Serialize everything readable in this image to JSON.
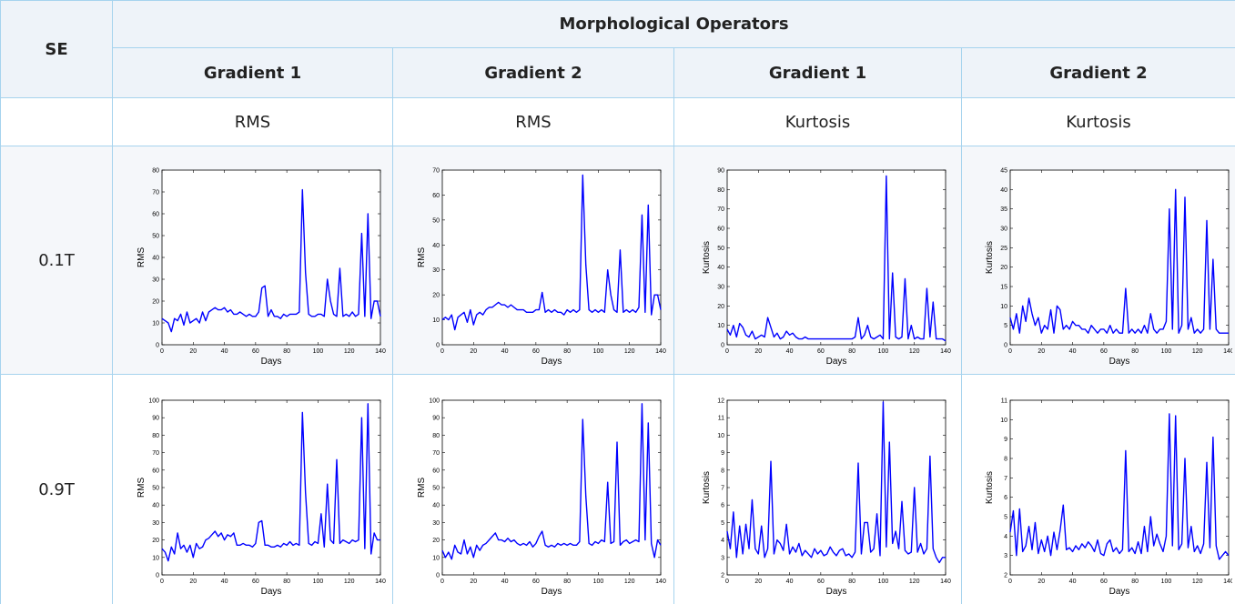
{
  "table": {
    "header": {
      "se": "SE",
      "group": "Morphological Operators",
      "columns": [
        "Gradient 1",
        "Gradient 2",
        "Gradient 1",
        "Gradient 2"
      ],
      "measures": [
        "RMS",
        "RMS",
        "Kurtosis",
        "Kurtosis"
      ]
    },
    "rows": [
      "0.1T",
      "0.9T"
    ]
  },
  "chart_data": [
    {
      "type": "line",
      "xlabel": "Days",
      "ylabel": "RMS",
      "color": "#0000ff",
      "xlim": [
        0,
        140
      ],
      "ylim": [
        0,
        80
      ],
      "xticks": [
        0,
        20,
        40,
        60,
        80,
        100,
        120,
        140
      ],
      "yticks": [
        0,
        10,
        20,
        30,
        40,
        50,
        60,
        70,
        80
      ],
      "x": [
        0,
        2,
        4,
        6,
        8,
        10,
        12,
        14,
        16,
        18,
        20,
        22,
        24,
        26,
        28,
        30,
        32,
        34,
        36,
        38,
        40,
        42,
        44,
        46,
        48,
        50,
        52,
        54,
        56,
        58,
        60,
        62,
        64,
        66,
        68,
        70,
        72,
        74,
        76,
        78,
        80,
        82,
        84,
        86,
        88,
        90,
        92,
        94,
        96,
        98,
        100,
        102,
        104,
        106,
        108,
        110,
        112,
        114,
        116,
        118,
        120,
        122,
        124,
        126,
        128,
        130,
        132,
        134,
        136,
        138,
        140
      ],
      "values": [
        12,
        11,
        10,
        6,
        12,
        11,
        14,
        9,
        15,
        10,
        11,
        12,
        10,
        15,
        11,
        15,
        16,
        17,
        16,
        16,
        17,
        15,
        16,
        14,
        14,
        15,
        14,
        13,
        14,
        13,
        13,
        15,
        26,
        27,
        13,
        16,
        13,
        13,
        12,
        14,
        13,
        14,
        14,
        14,
        15,
        71,
        33,
        14,
        13,
        13,
        14,
        14,
        13,
        30,
        20,
        14,
        13,
        35,
        13,
        14,
        13,
        15,
        13,
        14,
        51,
        13,
        60,
        12,
        20,
        20,
        13
      ]
    },
    {
      "type": "line",
      "xlabel": "Days",
      "ylabel": "RMS",
      "color": "#0000ff",
      "xlim": [
        0,
        140
      ],
      "ylim": [
        0,
        70
      ],
      "xticks": [
        0,
        20,
        40,
        60,
        80,
        100,
        120,
        140
      ],
      "yticks": [
        0,
        10,
        20,
        30,
        40,
        50,
        60,
        70
      ],
      "x": [
        0,
        2,
        4,
        6,
        8,
        10,
        12,
        14,
        16,
        18,
        20,
        22,
        24,
        26,
        28,
        30,
        32,
        34,
        36,
        38,
        40,
        42,
        44,
        46,
        48,
        50,
        52,
        54,
        56,
        58,
        60,
        62,
        64,
        66,
        68,
        70,
        72,
        74,
        76,
        78,
        80,
        82,
        84,
        86,
        88,
        90,
        92,
        94,
        96,
        98,
        100,
        102,
        104,
        106,
        108,
        110,
        112,
        114,
        116,
        118,
        120,
        122,
        124,
        126,
        128,
        130,
        132,
        134,
        136,
        138,
        140
      ],
      "values": [
        10,
        11,
        10,
        12,
        6,
        11,
        12,
        13,
        9,
        14,
        8,
        12,
        13,
        12,
        14,
        15,
        15,
        16,
        17,
        16,
        16,
        15,
        16,
        15,
        14,
        14,
        14,
        13,
        13,
        13,
        14,
        14,
        21,
        13,
        14,
        13,
        14,
        13,
        13,
        12,
        14,
        13,
        14,
        13,
        14,
        68,
        32,
        14,
        13,
        14,
        13,
        14,
        13,
        30,
        20,
        14,
        13,
        38,
        13,
        14,
        13,
        14,
        13,
        15,
        52,
        13,
        56,
        12,
        20,
        20,
        14
      ]
    },
    {
      "type": "line",
      "xlabel": "Days",
      "ylabel": "Kurtosis",
      "color": "#0000ff",
      "xlim": [
        0,
        140
      ],
      "ylim": [
        0,
        90
      ],
      "xticks": [
        0,
        20,
        40,
        60,
        80,
        100,
        120,
        140
      ],
      "yticks": [
        0,
        10,
        20,
        30,
        40,
        50,
        60,
        70,
        80,
        90
      ],
      "x": [
        0,
        2,
        4,
        6,
        8,
        10,
        12,
        14,
        16,
        18,
        20,
        22,
        24,
        26,
        28,
        30,
        32,
        34,
        36,
        38,
        40,
        42,
        44,
        46,
        48,
        50,
        52,
        54,
        56,
        58,
        60,
        62,
        64,
        66,
        68,
        70,
        72,
        74,
        76,
        78,
        80,
        82,
        84,
        86,
        88,
        90,
        92,
        94,
        96,
        98,
        100,
        102,
        104,
        106,
        108,
        110,
        112,
        114,
        116,
        118,
        120,
        122,
        124,
        126,
        128,
        130,
        132,
        134,
        136,
        138,
        140
      ],
      "values": [
        8,
        5,
        10,
        4,
        11,
        9,
        5,
        4,
        7,
        3,
        4,
        5,
        4,
        14,
        9,
        4,
        6,
        3,
        4,
        7,
        5,
        6,
        4,
        3,
        3,
        4,
        3,
        3,
        3,
        3,
        3,
        3,
        3,
        3,
        3,
        3,
        3,
        3,
        3,
        3,
        3,
        4,
        14,
        3,
        5,
        10,
        4,
        3,
        4,
        5,
        3,
        87,
        3,
        37,
        4,
        3,
        4,
        34,
        3,
        10,
        3,
        4,
        3,
        3,
        29,
        4,
        22,
        3,
        3,
        3,
        2
      ]
    },
    {
      "type": "line",
      "xlabel": "Days",
      "ylabel": "Kurtosis",
      "color": "#0000ff",
      "xlim": [
        0,
        140
      ],
      "ylim": [
        0,
        45
      ],
      "xticks": [
        0,
        20,
        40,
        60,
        80,
        100,
        120,
        140
      ],
      "yticks": [
        0,
        5,
        10,
        15,
        20,
        25,
        30,
        35,
        40,
        45
      ],
      "x": [
        0,
        2,
        4,
        6,
        8,
        10,
        12,
        14,
        16,
        18,
        20,
        22,
        24,
        26,
        28,
        30,
        32,
        34,
        36,
        38,
        40,
        42,
        44,
        46,
        48,
        50,
        52,
        54,
        56,
        58,
        60,
        62,
        64,
        66,
        68,
        70,
        72,
        74,
        76,
        78,
        80,
        82,
        84,
        86,
        88,
        90,
        92,
        94,
        96,
        98,
        100,
        102,
        104,
        106,
        108,
        110,
        112,
        114,
        116,
        118,
        120,
        122,
        124,
        126,
        128,
        130,
        132,
        134,
        136,
        138,
        140
      ],
      "values": [
        7,
        4,
        8,
        3,
        10,
        6,
        12,
        8,
        5,
        7,
        3,
        5,
        4,
        9,
        3,
        10,
        9,
        4,
        5,
        4,
        6,
        5,
        5,
        4,
        4,
        3,
        5,
        4,
        3,
        4,
        4,
        3,
        5,
        3,
        4,
        3,
        3,
        14.5,
        3,
        4,
        3,
        4,
        3,
        5,
        3,
        8,
        4,
        3,
        4,
        4,
        6,
        35,
        4,
        40,
        3,
        5,
        38,
        4,
        7,
        3,
        4,
        3,
        4,
        32,
        4,
        22,
        4,
        3,
        3,
        3,
        3
      ]
    },
    {
      "type": "line",
      "xlabel": "Days",
      "ylabel": "RMS",
      "color": "#0000ff",
      "xlim": [
        0,
        140
      ],
      "ylim": [
        0,
        100
      ],
      "xticks": [
        0,
        20,
        40,
        60,
        80,
        100,
        120,
        140
      ],
      "yticks": [
        0,
        10,
        20,
        30,
        40,
        50,
        60,
        70,
        80,
        90,
        100
      ],
      "x": [
        0,
        2,
        4,
        6,
        8,
        10,
        12,
        14,
        16,
        18,
        20,
        22,
        24,
        26,
        28,
        30,
        32,
        34,
        36,
        38,
        40,
        42,
        44,
        46,
        48,
        50,
        52,
        54,
        56,
        58,
        60,
        62,
        64,
        66,
        68,
        70,
        72,
        74,
        76,
        78,
        80,
        82,
        84,
        86,
        88,
        90,
        92,
        94,
        96,
        98,
        100,
        102,
        104,
        106,
        108,
        110,
        112,
        114,
        116,
        118,
        120,
        122,
        124,
        126,
        128,
        130,
        132,
        134,
        136,
        138,
        140
      ],
      "values": [
        15,
        13,
        8,
        16,
        12,
        24,
        15,
        17,
        13,
        17,
        10,
        18,
        15,
        16,
        20,
        21,
        23,
        25,
        22,
        24,
        20,
        23,
        22,
        24,
        17,
        17,
        18,
        17,
        17,
        16,
        18,
        30,
        31,
        17,
        17,
        16,
        16,
        17,
        16,
        18,
        17,
        19,
        17,
        18,
        17,
        93,
        47,
        18,
        17,
        19,
        18,
        35,
        16,
        52,
        20,
        18,
        66,
        18,
        20,
        19,
        18,
        20,
        19,
        20,
        90,
        15,
        98,
        12,
        24,
        20,
        20
      ]
    },
    {
      "type": "line",
      "xlabel": "Days",
      "ylabel": "RMS",
      "color": "#0000ff",
      "xlim": [
        0,
        140
      ],
      "ylim": [
        0,
        100
      ],
      "xticks": [
        0,
        20,
        40,
        60,
        80,
        100,
        120,
        140
      ],
      "yticks": [
        0,
        10,
        20,
        30,
        40,
        50,
        60,
        70,
        80,
        90,
        100
      ],
      "x": [
        0,
        2,
        4,
        6,
        8,
        10,
        12,
        14,
        16,
        18,
        20,
        22,
        24,
        26,
        28,
        30,
        32,
        34,
        36,
        38,
        40,
        42,
        44,
        46,
        48,
        50,
        52,
        54,
        56,
        58,
        60,
        62,
        64,
        66,
        68,
        70,
        72,
        74,
        76,
        78,
        80,
        82,
        84,
        86,
        88,
        90,
        92,
        94,
        96,
        98,
        100,
        102,
        104,
        106,
        108,
        110,
        112,
        114,
        116,
        118,
        120,
        122,
        124,
        126,
        128,
        130,
        132,
        134,
        136,
        138,
        140
      ],
      "values": [
        14,
        10,
        13,
        9,
        17,
        13,
        12,
        20,
        12,
        16,
        10,
        17,
        14,
        17,
        18,
        20,
        22,
        24,
        20,
        20,
        19,
        21,
        19,
        20,
        18,
        17,
        18,
        17,
        19,
        16,
        18,
        22,
        25,
        17,
        16,
        17,
        16,
        18,
        17,
        18,
        17,
        18,
        17,
        17,
        19,
        89,
        45,
        18,
        17,
        19,
        18,
        20,
        19,
        53,
        18,
        19,
        76,
        17,
        19,
        20,
        18,
        19,
        20,
        19,
        98,
        20,
        87,
        18,
        10,
        20,
        17
      ]
    },
    {
      "type": "line",
      "xlabel": "Days",
      "ylabel": "Kurtosis",
      "color": "#0000ff",
      "xlim": [
        0,
        140
      ],
      "ylim": [
        2,
        12
      ],
      "xticks": [
        0,
        20,
        40,
        60,
        80,
        100,
        120,
        140
      ],
      "yticks": [
        2,
        3,
        4,
        5,
        6,
        7,
        8,
        9,
        10,
        11,
        12
      ],
      "x": [
        0,
        2,
        4,
        6,
        8,
        10,
        12,
        14,
        16,
        18,
        20,
        22,
        24,
        26,
        28,
        30,
        32,
        34,
        36,
        38,
        40,
        42,
        44,
        46,
        48,
        50,
        52,
        54,
        56,
        58,
        60,
        62,
        64,
        66,
        68,
        70,
        72,
        74,
        76,
        78,
        80,
        82,
        84,
        86,
        88,
        90,
        92,
        94,
        96,
        98,
        100,
        102,
        104,
        106,
        108,
        110,
        112,
        114,
        116,
        118,
        120,
        122,
        124,
        126,
        128,
        130,
        132,
        134,
        136,
        138,
        140
      ],
      "values": [
        4.5,
        3.5,
        5.6,
        3,
        4.8,
        3.2,
        4.9,
        3.5,
        6.3,
        3.5,
        3.2,
        4.8,
        3,
        3.5,
        8.5,
        3.2,
        4,
        3.8,
        3.4,
        4.9,
        3.2,
        3.6,
        3.3,
        3.8,
        3.1,
        3.4,
        3.2,
        3,
        3.5,
        3.2,
        3.4,
        3.1,
        3.2,
        3.6,
        3.3,
        3.1,
        3.4,
        3.5,
        3.1,
        3.2,
        3,
        3.3,
        8.4,
        3.2,
        5,
        5,
        3.3,
        3.5,
        5.5,
        3.1,
        11.9,
        3.6,
        9.6,
        3.8,
        4.5,
        3.5,
        6.2,
        3.4,
        3.2,
        3.3,
        7,
        3.3,
        3.8,
        3.2,
        3.5,
        8.8,
        3.5,
        3,
        2.7,
        3,
        3
      ]
    },
    {
      "type": "line",
      "xlabel": "Days",
      "ylabel": "Kurtosis",
      "color": "#0000ff",
      "xlim": [
        0,
        140
      ],
      "ylim": [
        2,
        11
      ],
      "xticks": [
        0,
        20,
        40,
        60,
        80,
        100,
        120,
        140
      ],
      "yticks": [
        2,
        3,
        4,
        5,
        6,
        7,
        8,
        9,
        10,
        11
      ],
      "x": [
        0,
        2,
        4,
        6,
        8,
        10,
        12,
        14,
        16,
        18,
        20,
        22,
        24,
        26,
        28,
        30,
        32,
        34,
        36,
        38,
        40,
        42,
        44,
        46,
        48,
        50,
        52,
        54,
        56,
        58,
        60,
        62,
        64,
        66,
        68,
        70,
        72,
        74,
        76,
        78,
        80,
        82,
        84,
        86,
        88,
        90,
        92,
        94,
        96,
        98,
        100,
        102,
        104,
        106,
        108,
        110,
        112,
        114,
        116,
        118,
        120,
        122,
        124,
        126,
        128,
        130,
        132,
        134,
        136,
        138,
        140
      ],
      "values": [
        4.2,
        5.3,
        3,
        5.4,
        3.2,
        3.5,
        4.5,
        3.3,
        4.7,
        3.1,
        3.8,
        3.2,
        4,
        3,
        4.2,
        3.3,
        4.3,
        5.6,
        3.3,
        3.4,
        3.2,
        3.5,
        3.3,
        3.6,
        3.4,
        3.7,
        3.5,
        3.2,
        3.8,
        3.1,
        3,
        3.6,
        3.8,
        3.2,
        3.4,
        3.1,
        3.3,
        8.4,
        3.2,
        3.4,
        3.1,
        3.7,
        3.1,
        4.5,
        3.2,
        5,
        3.5,
        4.1,
        3.6,
        3.2,
        4,
        10.3,
        3.5,
        10.2,
        3.3,
        3.6,
        8,
        3.4,
        4.5,
        3.2,
        3.5,
        3.1,
        3.6,
        7.8,
        3.4,
        9.1,
        3.5,
        2.8,
        3,
        3.2,
        3
      ]
    }
  ]
}
